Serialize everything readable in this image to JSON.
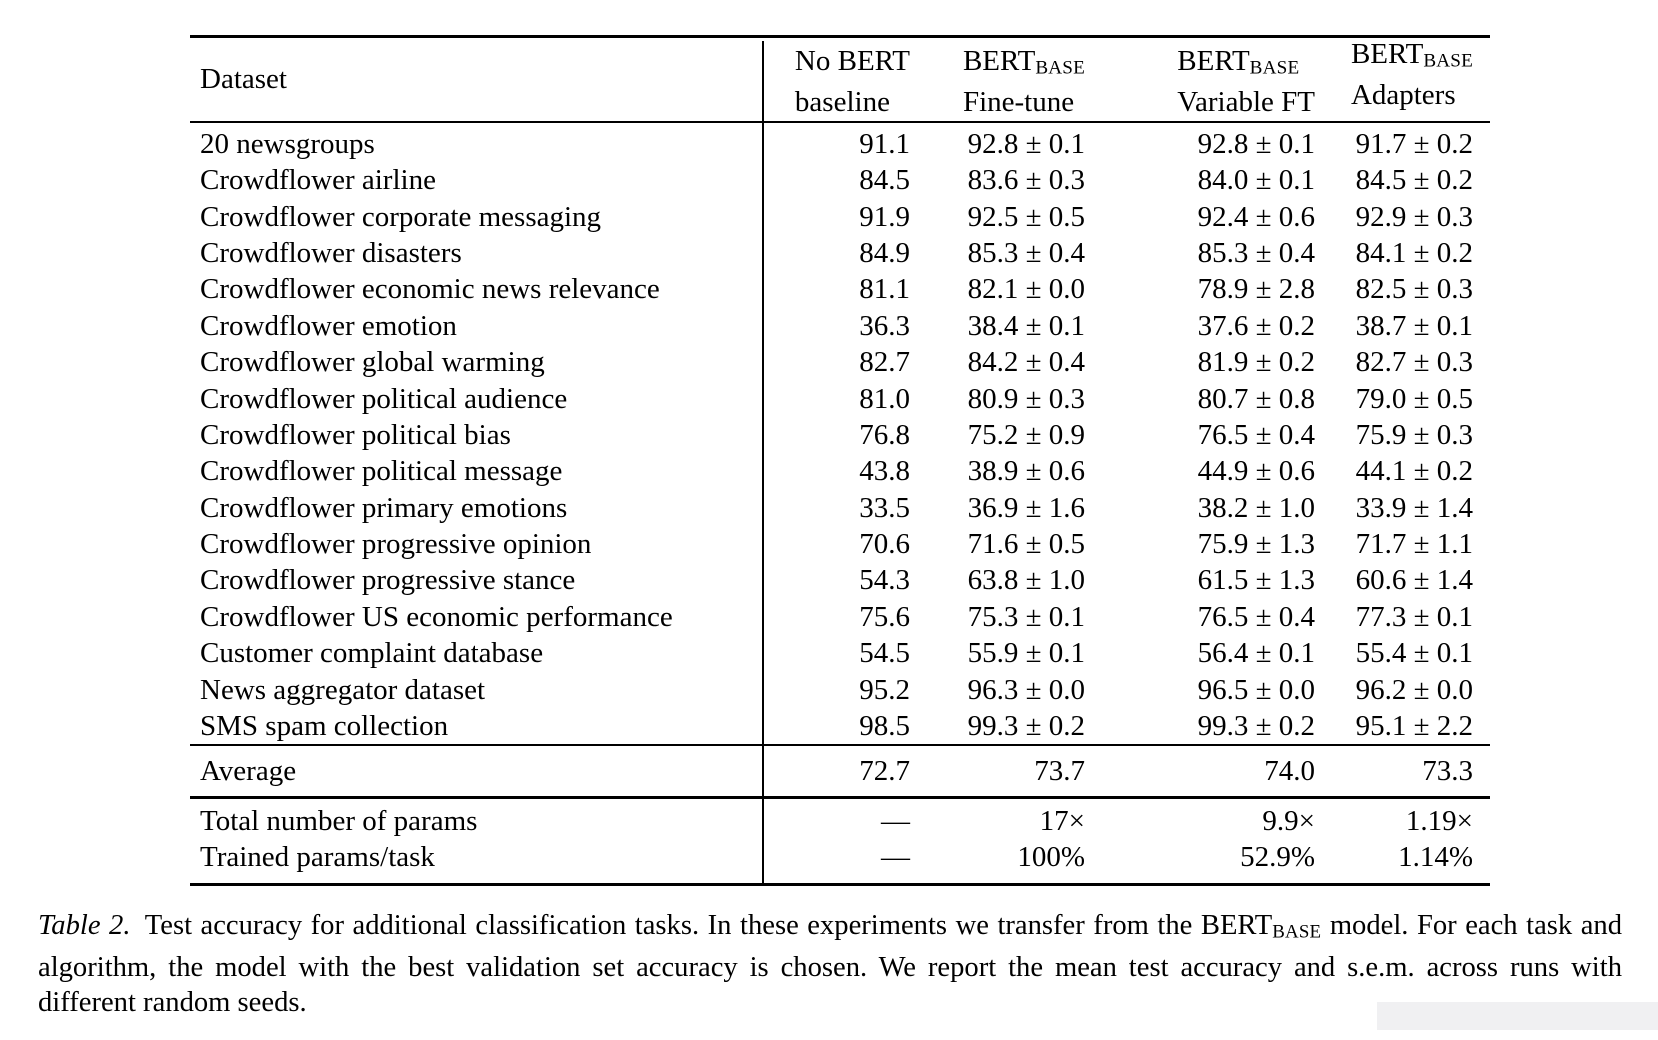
{
  "table": {
    "dataset_header": "Dataset",
    "headers": [
      {
        "top": "No BERT",
        "top_sub": "",
        "bottom": "baseline"
      },
      {
        "top": "BERT",
        "top_sub": "BASE",
        "bottom": "Fine-tune"
      },
      {
        "top": "BERT",
        "top_sub": "BASE",
        "bottom": "Variable FT"
      },
      {
        "top": "BERT",
        "top_sub": "BASE",
        "bottom": "Adapters"
      }
    ],
    "rows": [
      {
        "name": "20 newsgroups",
        "values": [
          "91.1",
          "92.8 ± 0.1",
          "92.8 ± 0.1",
          "91.7 ± 0.2"
        ]
      },
      {
        "name": "Crowdflower airline",
        "values": [
          "84.5",
          "83.6 ± 0.3",
          "84.0 ± 0.1",
          "84.5 ± 0.2"
        ]
      },
      {
        "name": "Crowdflower corporate messaging",
        "values": [
          "91.9",
          "92.5 ± 0.5",
          "92.4 ± 0.6",
          "92.9 ± 0.3"
        ]
      },
      {
        "name": "Crowdflower disasters",
        "values": [
          "84.9",
          "85.3 ± 0.4",
          "85.3 ± 0.4",
          "84.1 ± 0.2"
        ]
      },
      {
        "name": "Crowdflower economic news relevance",
        "values": [
          "81.1",
          "82.1 ± 0.0",
          "78.9 ± 2.8",
          "82.5 ± 0.3"
        ]
      },
      {
        "name": "Crowdflower emotion",
        "values": [
          "36.3",
          "38.4 ± 0.1",
          "37.6 ± 0.2",
          "38.7 ± 0.1"
        ]
      },
      {
        "name": "Crowdflower global warming",
        "values": [
          "82.7",
          "84.2 ± 0.4",
          "81.9 ± 0.2",
          "82.7 ± 0.3"
        ]
      },
      {
        "name": "Crowdflower political audience",
        "values": [
          "81.0",
          "80.9 ± 0.3",
          "80.7 ± 0.8",
          "79.0 ± 0.5"
        ]
      },
      {
        "name": "Crowdflower political bias",
        "values": [
          "76.8",
          "75.2 ± 0.9",
          "76.5 ± 0.4",
          "75.9 ± 0.3"
        ]
      },
      {
        "name": "Crowdflower political message",
        "values": [
          "43.8",
          "38.9 ± 0.6",
          "44.9 ± 0.6",
          "44.1 ± 0.2"
        ]
      },
      {
        "name": "Crowdflower primary emotions",
        "values": [
          "33.5",
          "36.9 ± 1.6",
          "38.2 ± 1.0",
          "33.9 ± 1.4"
        ]
      },
      {
        "name": "Crowdflower progressive opinion",
        "values": [
          "70.6",
          "71.6 ± 0.5",
          "75.9 ± 1.3",
          "71.7 ± 1.1"
        ]
      },
      {
        "name": "Crowdflower progressive stance",
        "values": [
          "54.3",
          "63.8 ± 1.0",
          "61.5 ± 1.3",
          "60.6 ± 1.4"
        ]
      },
      {
        "name": "Crowdflower US economic performance",
        "values": [
          "75.6",
          "75.3 ± 0.1",
          "76.5 ± 0.4",
          "77.3 ± 0.1"
        ]
      },
      {
        "name": "Customer complaint database",
        "values": [
          "54.5",
          "55.9 ± 0.1",
          "56.4 ± 0.1",
          "55.4 ± 0.1"
        ]
      },
      {
        "name": "News aggregator dataset",
        "values": [
          "95.2",
          "96.3 ± 0.0",
          "96.5 ± 0.0",
          "96.2 ± 0.0"
        ]
      },
      {
        "name": "SMS spam collection",
        "values": [
          "98.5",
          "99.3 ± 0.2",
          "99.3 ± 0.2",
          "95.1 ± 2.2"
        ]
      }
    ],
    "average": {
      "label": "Average",
      "values": [
        "72.7",
        "73.7",
        "74.0",
        "73.3"
      ]
    },
    "footer_rows": [
      {
        "label": "Total number of params",
        "values": [
          "—",
          "17×",
          "9.9×",
          "1.19×"
        ]
      },
      {
        "label": "Trained params/task",
        "values": [
          "—",
          "100%",
          "52.9%",
          "1.14%"
        ]
      }
    ]
  },
  "caption": {
    "label": "Table 2.",
    "before_bert": "Test accuracy for additional classification tasks. In these experiments we transfer from the",
    "bert": "BERT",
    "bert_sub": "BASE",
    "after_bert": "model. For each task and algorithm, the model with the best validation set accuracy is chosen. We report the mean test accuracy and s.e.m. across runs with different random seeds."
  },
  "artifacts": {
    "scrollbar_color": "#f0f0f2"
  }
}
